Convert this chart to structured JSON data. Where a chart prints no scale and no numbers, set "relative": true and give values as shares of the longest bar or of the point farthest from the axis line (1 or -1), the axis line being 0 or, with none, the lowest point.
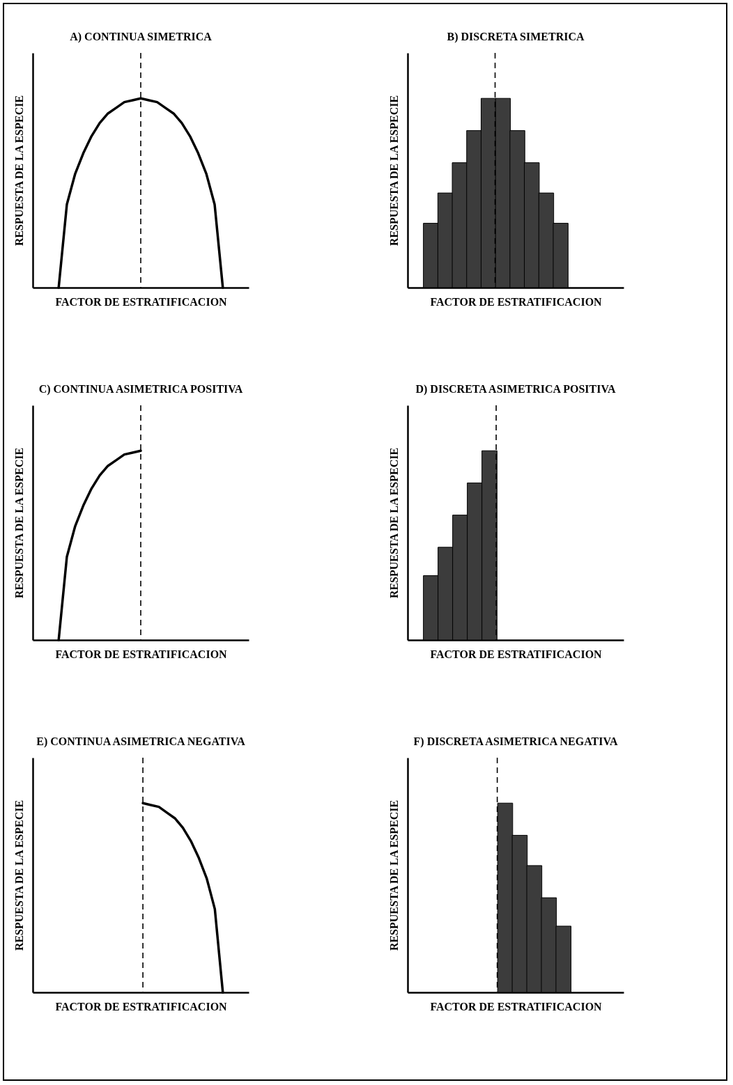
{
  "chart_data": [
    {
      "type": "line",
      "title": "A) CONTINUA SIMETRICA",
      "xlabel": "FACTOR DE ESTRATIFICACION",
      "ylabel": "RESPUESTA DE LA ESPECIE",
      "relative": true,
      "categories": [
        null,
        null,
        null,
        null,
        null,
        null,
        null,
        null,
        null,
        null,
        null,
        null,
        null,
        null,
        null,
        null,
        null,
        null,
        null,
        null,
        null
      ],
      "values": [
        0,
        0.44,
        0.6,
        0.71,
        0.8,
        0.87,
        0.92,
        0.95,
        0.98,
        0.99,
        1,
        0.99,
        0.98,
        0.95,
        0.92,
        0.87,
        0.8,
        0.71,
        0.6,
        0.44,
        0
      ],
      "color": "#000000"
    },
    {
      "type": "bar",
      "title": "B) DISCRETA SIMETRICA",
      "xlabel": "FACTOR DE ESTRATIFICACION",
      "ylabel": "RESPUESTA DE LA ESPECIE",
      "relative": true,
      "categories": [
        null,
        null,
        null,
        null,
        null,
        null,
        null,
        null,
        null,
        null
      ],
      "values": [
        0.34,
        0.5,
        0.66,
        0.83,
        1,
        1,
        0.83,
        0.66,
        0.5,
        0.34
      ],
      "color": "#3c3c3c"
    },
    {
      "type": "line",
      "title": "C) CONTINUA ASIMETRICA POSITIVA",
      "xlabel": "FACTOR DE ESTRATIFICACION",
      "ylabel": "RESPUESTA DE LA ESPECIE",
      "relative": true,
      "categories": [
        null,
        null,
        null,
        null,
        null,
        null,
        null,
        null,
        null,
        null,
        null
      ],
      "values": [
        0,
        0.44,
        0.6,
        0.71,
        0.8,
        0.87,
        0.92,
        0.95,
        0.98,
        0.99,
        1
      ],
      "color": "#000000"
    },
    {
      "type": "bar",
      "title": "D) DISCRETA  ASIMETRICA POSITIVA",
      "xlabel": "FACTOR DE ESTRATIFICACION",
      "ylabel": "RESPUESTA DE LA ESPECIE",
      "relative": true,
      "categories": [
        null,
        null,
        null,
        null,
        null
      ],
      "values": [
        0.34,
        0.49,
        0.66,
        0.83,
        1
      ],
      "color": "#3c3c3c"
    },
    {
      "type": "line",
      "title": "E) CONTINUA  ASIMETRICA NEGATIVA",
      "xlabel": "FACTOR DE ESTRATIFICACION",
      "ylabel": "RESPUESTA DE LA ESPECIE",
      "relative": true,
      "categories": [
        null,
        null,
        null,
        null,
        null,
        null,
        null,
        null,
        null,
        null,
        null
      ],
      "values": [
        1,
        0.99,
        0.98,
        0.95,
        0.92,
        0.87,
        0.8,
        0.71,
        0.6,
        0.44,
        0
      ],
      "color": "#000000"
    },
    {
      "type": "bar",
      "title": "F) DISCRETA ASIMETRICA NEGATIVA",
      "xlabel": "FACTOR DE ESTRATIFICACION",
      "ylabel": "RESPUESTA DE LA ESPECIE",
      "relative": true,
      "categories": [
        null,
        null,
        null,
        null,
        null
      ],
      "values": [
        1,
        0.83,
        0.67,
        0.5,
        0.35
      ],
      "color": "#3c3c3c"
    }
  ]
}
